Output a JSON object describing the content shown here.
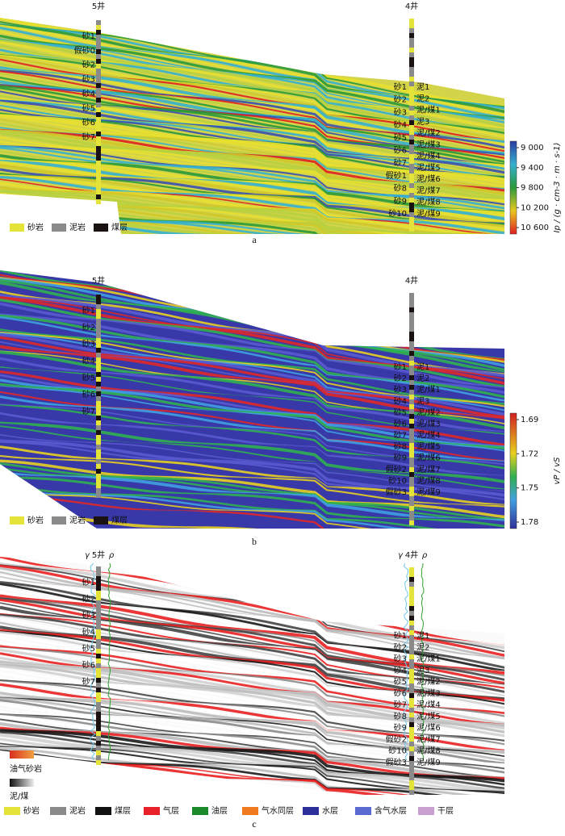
{
  "panel_a": {
    "wells": [
      "5井",
      "4井"
    ],
    "well5_labels": [
      "砂1",
      "假砂0",
      "砂2",
      "砂3",
      "砂4",
      "砂5",
      "砂6",
      "砂7"
    ],
    "well4_sand_labels": [
      "砂1",
      "砂2",
      "砂3",
      "砂4",
      "砂5",
      "砂6",
      "砂7",
      "假砂1",
      "砂8",
      "砂9",
      "砂10"
    ],
    "well4_mud_labels": [
      "泥1",
      "泥2",
      "泥/煤1",
      "泥3",
      "泥/煤2",
      "泥/煤3",
      "泥/煤4",
      "泥/煤5",
      "泥/煤6",
      "泥/煤7",
      "泥/煤8",
      "泥/煤9"
    ],
    "legend": [
      {
        "label": "砂岩",
        "color": "#e3e33a"
      },
      {
        "label": "泥岩",
        "color": "#8a8a8a"
      },
      {
        "label": "煤层",
        "color": "#1a1111"
      }
    ],
    "colorbar_label": "Ip / (g · cm-3 · m · s-1)",
    "colorbar_ticks": [
      "9 000",
      "9 400",
      "9 800",
      "10 200",
      "10 600"
    ],
    "caption": "a"
  },
  "panel_b": {
    "wells": [
      "5井",
      "4井"
    ],
    "well5_labels": [
      "砂1",
      "砂2",
      "砂3",
      "砂4",
      "砂5",
      "砂6",
      "砂7"
    ],
    "well4_sand_labels": [
      "砂1",
      "砂2",
      "砂3",
      "砂4",
      "砂5",
      "砂6",
      "砂7",
      "砂8",
      "砂9",
      "假砂2",
      "砂10",
      "假砂3"
    ],
    "well4_mud_labels": [
      "泥1",
      "泥2",
      "泥/煤1",
      "泥3",
      "泥/煤2",
      "泥/煤3",
      "泥/煤4",
      "泥/煤5",
      "泥/煤6",
      "泥/煤7",
      "泥/煤8",
      "泥/煤9"
    ],
    "legend": [
      {
        "label": "砂岩",
        "color": "#e3e33a"
      },
      {
        "label": "泥岩",
        "color": "#8a8a8a"
      },
      {
        "label": "煤层",
        "color": "#1a1111"
      }
    ],
    "colorbar_label": "vP / vS",
    "colorbar_ticks": [
      "1.69",
      "1.72",
      "1.75",
      "1.78"
    ],
    "caption": "b"
  },
  "panel_c": {
    "wells": [
      "5井",
      "4井"
    ],
    "curves": [
      "γ",
      "ρ"
    ],
    "well5_labels": [
      "砂1",
      "砂2",
      "砂3",
      "砂4",
      "砂5",
      "砂6",
      "砂7"
    ],
    "well4_sand_labels": [
      "砂1",
      "砂2",
      "砂3",
      "砂4",
      "砂5",
      "砂6",
      "砂7",
      "砂8",
      "砂9",
      "假砂2",
      "砂10",
      "假砂3"
    ],
    "well4_mud_labels": [
      "泥1",
      "泥2",
      "泥/煤1",
      "泥3",
      "泥/煤2",
      "泥/煤3",
      "泥/煤4",
      "泥/煤5",
      "泥/煤6",
      "泥/煤7",
      "泥/煤8",
      "泥/煤9"
    ],
    "inner_legend": [
      "油气砂岩",
      "泥/煤"
    ],
    "legend": [
      {
        "label": "砂岩",
        "color": "#e3e33a"
      },
      {
        "label": "泥岩",
        "color": "#8a8a8a"
      },
      {
        "label": "煤层",
        "color": "#111111"
      },
      {
        "label": "气层",
        "color": "#e8202a"
      },
      {
        "label": "油层",
        "color": "#1a8a2a"
      },
      {
        "label": "气水同层",
        "color": "#f07a20"
      },
      {
        "label": "水层",
        "color": "#2e2e9a"
      },
      {
        "label": "含气水层",
        "color": "#5a6ad0"
      },
      {
        "label": "干层",
        "color": "#c8a0d0"
      }
    ],
    "caption": "c"
  }
}
